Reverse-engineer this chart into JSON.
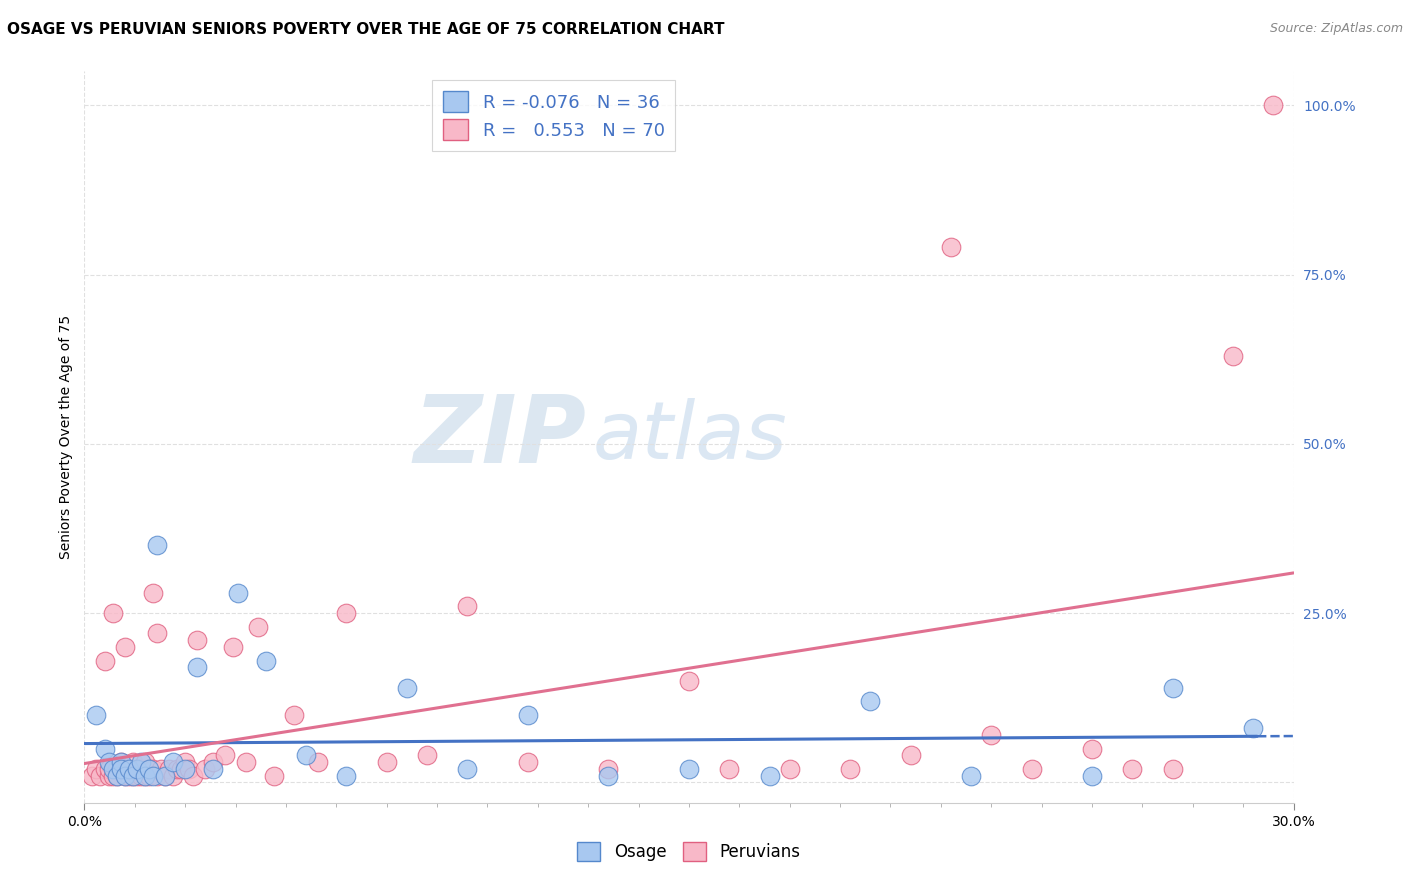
{
  "title": "OSAGE VS PERUVIAN SENIORS POVERTY OVER THE AGE OF 75 CORRELATION CHART",
  "source_text": "Source: ZipAtlas.com",
  "ylabel": "Seniors Poverty Over the Age of 75",
  "xlim": [
    0.0,
    0.3
  ],
  "ylim": [
    -0.03,
    1.05
  ],
  "x_ticks": [
    0.0,
    0.3
  ],
  "x_tick_labels": [
    "0.0%",
    "30.0%"
  ],
  "y_ticks": [
    0.0,
    0.25,
    0.5,
    0.75,
    1.0
  ],
  "y_tick_labels": [
    "",
    "25.0%",
    "50.0%",
    "75.0%",
    "100.0%"
  ],
  "watermark_zip": "ZIP",
  "watermark_atlas": "atlas",
  "osage_color": "#a8c8f0",
  "peruvian_color": "#f8b8c8",
  "osage_edge_color": "#5588cc",
  "peruvian_edge_color": "#e06080",
  "osage_line_color": "#4472c4",
  "peruvian_line_color": "#e07090",
  "osage_R": -0.076,
  "osage_N": 36,
  "peruvian_R": 0.553,
  "peruvian_N": 70,
  "legend_label_osage": "Osage",
  "legend_label_peruvian": "Peruvians",
  "osage_x": [
    0.003,
    0.005,
    0.006,
    0.007,
    0.008,
    0.009,
    0.009,
    0.01,
    0.011,
    0.012,
    0.013,
    0.014,
    0.015,
    0.016,
    0.017,
    0.018,
    0.02,
    0.022,
    0.025,
    0.028,
    0.032,
    0.038,
    0.045,
    0.055,
    0.065,
    0.08,
    0.095,
    0.11,
    0.13,
    0.15,
    0.17,
    0.195,
    0.22,
    0.25,
    0.27,
    0.29
  ],
  "osage_y": [
    0.1,
    0.05,
    0.03,
    0.02,
    0.01,
    0.03,
    0.02,
    0.01,
    0.02,
    0.01,
    0.02,
    0.03,
    0.01,
    0.02,
    0.01,
    0.35,
    0.01,
    0.03,
    0.02,
    0.17,
    0.02,
    0.28,
    0.18,
    0.04,
    0.01,
    0.14,
    0.02,
    0.1,
    0.01,
    0.02,
    0.01,
    0.12,
    0.01,
    0.01,
    0.14,
    0.08
  ],
  "peruvian_x": [
    0.002,
    0.003,
    0.004,
    0.005,
    0.005,
    0.006,
    0.006,
    0.007,
    0.007,
    0.008,
    0.008,
    0.009,
    0.009,
    0.01,
    0.01,
    0.01,
    0.011,
    0.011,
    0.012,
    0.012,
    0.013,
    0.013,
    0.014,
    0.014,
    0.015,
    0.015,
    0.016,
    0.016,
    0.017,
    0.017,
    0.018,
    0.018,
    0.019,
    0.02,
    0.021,
    0.022,
    0.023,
    0.024,
    0.025,
    0.026,
    0.027,
    0.028,
    0.03,
    0.032,
    0.035,
    0.037,
    0.04,
    0.043,
    0.047,
    0.052,
    0.058,
    0.065,
    0.075,
    0.085,
    0.095,
    0.11,
    0.13,
    0.15,
    0.16,
    0.175,
    0.19,
    0.205,
    0.215,
    0.225,
    0.235,
    0.25,
    0.26,
    0.27,
    0.285,
    0.295
  ],
  "peruvian_y": [
    0.01,
    0.02,
    0.01,
    0.02,
    0.18,
    0.01,
    0.02,
    0.01,
    0.25,
    0.02,
    0.01,
    0.02,
    0.03,
    0.02,
    0.01,
    0.2,
    0.02,
    0.01,
    0.01,
    0.03,
    0.02,
    0.01,
    0.02,
    0.01,
    0.01,
    0.03,
    0.02,
    0.01,
    0.28,
    0.02,
    0.01,
    0.22,
    0.02,
    0.01,
    0.02,
    0.01,
    0.02,
    0.02,
    0.03,
    0.02,
    0.01,
    0.21,
    0.02,
    0.03,
    0.04,
    0.2,
    0.03,
    0.23,
    0.01,
    0.1,
    0.03,
    0.25,
    0.03,
    0.04,
    0.26,
    0.03,
    0.02,
    0.15,
    0.02,
    0.02,
    0.02,
    0.04,
    0.79,
    0.07,
    0.02,
    0.05,
    0.02,
    0.02,
    0.63,
    1.0
  ],
  "background_color": "#ffffff",
  "grid_color": "#e0e0e0",
  "title_fontsize": 11,
  "source_fontsize": 9,
  "axis_label_fontsize": 10,
  "tick_fontsize": 10,
  "legend_fontsize": 13,
  "watermark_fontsize_zip": 68,
  "watermark_fontsize_atlas": 58
}
